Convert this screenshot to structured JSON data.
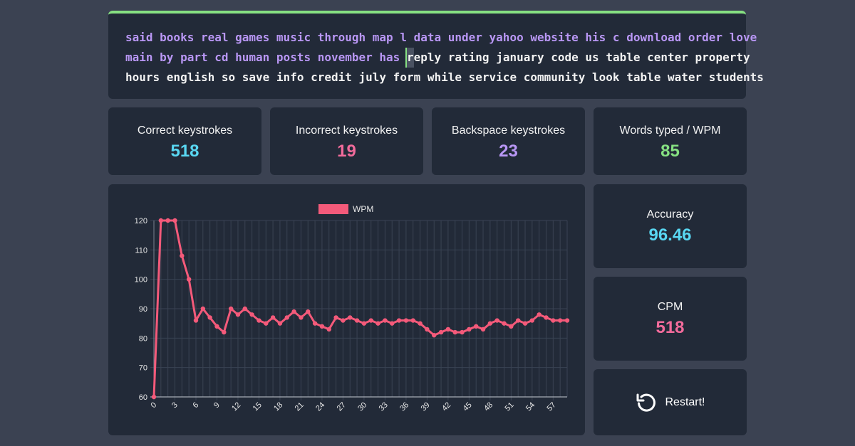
{
  "colors": {
    "typed": "#b997f5",
    "untyped": "#f2f2f2",
    "caret": "#86e082",
    "cyan": "#59d7f2",
    "pink": "#f26b9b",
    "purple": "#b997f5",
    "green": "#86e082",
    "series": "#f45a7a"
  },
  "typing_text": {
    "lines": [
      {
        "typed": "said books real games music through map l data under yahoo website his c download order love",
        "caret_char": "",
        "rest": ""
      },
      {
        "typed": "main by part cd human posts november has ",
        "caret_char": "r",
        "rest": "eply rating january code us table center property"
      },
      {
        "typed": "",
        "caret_char": "",
        "rest": "hours english so save info credit july form while service community look table water students"
      }
    ]
  },
  "stats": {
    "correct": {
      "label": "Correct keystrokes",
      "value": "518"
    },
    "incorrect": {
      "label": "Incorrect keystrokes",
      "value": "19"
    },
    "backspace": {
      "label": "Backspace keystrokes",
      "value": "23"
    },
    "words": {
      "label": "Words typed / WPM",
      "value": "85"
    },
    "accuracy": {
      "label": "Accuracy",
      "value": "96.46"
    },
    "cpm": {
      "label": "CPM",
      "value": "518"
    }
  },
  "restart": {
    "label": "Restart!",
    "icon": "restart-icon"
  },
  "chart_data": {
    "type": "line",
    "title": "",
    "xlabel": "",
    "ylabel": "",
    "legend": "top",
    "grid": true,
    "xlim": [
      0,
      59
    ],
    "ylim": [
      60,
      120
    ],
    "x_ticks": [
      0,
      3,
      6,
      9,
      12,
      15,
      18,
      21,
      24,
      27,
      30,
      33,
      36,
      39,
      42,
      45,
      48,
      51,
      54,
      57
    ],
    "y_ticks": [
      60,
      70,
      80,
      90,
      100,
      110,
      120
    ],
    "series": [
      {
        "name": "WPM",
        "color": "#f45a7a",
        "x": [
          0,
          1,
          2,
          3,
          4,
          5,
          6,
          7,
          8,
          9,
          10,
          11,
          12,
          13,
          14,
          15,
          16,
          17,
          18,
          19,
          20,
          21,
          22,
          23,
          24,
          25,
          26,
          27,
          28,
          29,
          30,
          31,
          32,
          33,
          34,
          35,
          36,
          37,
          38,
          39,
          40,
          41,
          42,
          43,
          44,
          45,
          46,
          47,
          48,
          49,
          50,
          51,
          52,
          53,
          54,
          55,
          56,
          57,
          58,
          59
        ],
        "values": [
          60,
          120,
          120,
          120,
          108,
          100,
          86,
          90,
          87,
          84,
          82,
          90,
          88,
          90,
          88,
          86,
          85,
          87,
          85,
          87,
          89,
          87,
          89,
          85,
          84,
          83,
          87,
          86,
          87,
          86,
          85,
          86,
          85,
          86,
          85,
          86,
          86,
          86,
          85,
          83,
          81,
          82,
          83,
          82,
          82,
          83,
          84,
          83,
          85,
          86,
          85,
          84,
          86,
          85,
          86,
          88,
          87,
          86,
          86,
          86
        ]
      }
    ]
  }
}
